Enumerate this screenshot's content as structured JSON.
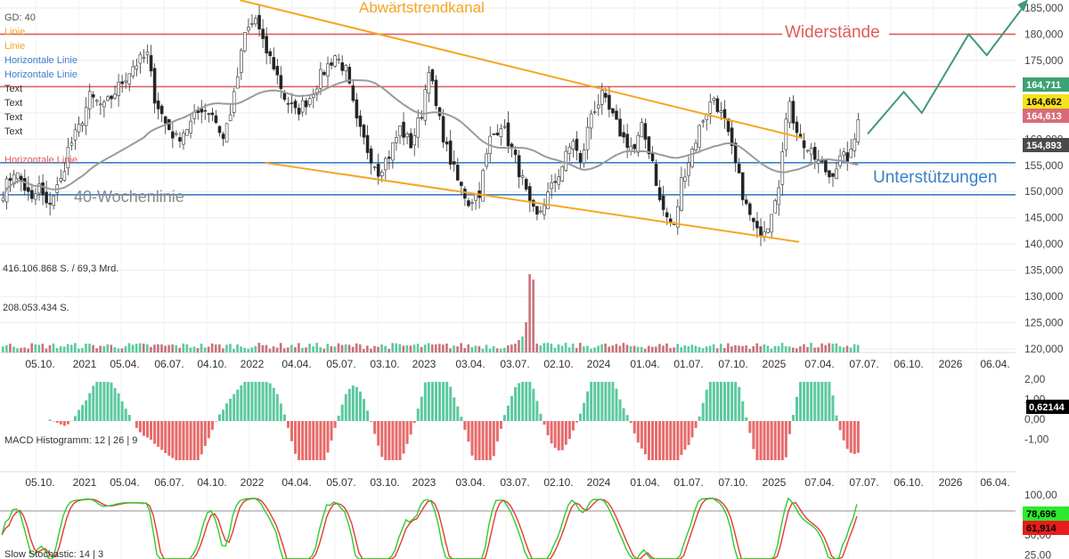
{
  "legend": {
    "gd": "GD: 40",
    "linie1": "Linie",
    "linie2": "Linie",
    "horiz1": "Horizontale Linie",
    "horiz2": "Horizontale Linie",
    "text1": "Text",
    "text2": "Text",
    "text3": "Text",
    "text4": "Text",
    "horiz_red": "Horizontale Linie"
  },
  "annotations": {
    "channel": "Abwärtstrendkanal",
    "resistance": "Widerstände",
    "support": "Unterstützungen",
    "ma": "40-Wochenlinie"
  },
  "volume_labels": {
    "top": "416.106.868 S. / 69,3 Mrd.",
    "mid": "208.053.434 S."
  },
  "price_badges": [
    {
      "label": "164,711",
      "color": "#3ba272",
      "text_color": "#ffffff"
    },
    {
      "label": "164,662",
      "color": "#f5e21b",
      "text_color": "#000000"
    },
    {
      "label": "164,613",
      "color": "#d96b78",
      "text_color": "#ffffff"
    },
    {
      "label": "154,893",
      "color": "#4a4a4a",
      "text_color": "#ffffff"
    }
  ],
  "macd": {
    "label": "MACD Histogramm: 12 | 26 | 9",
    "badge": "0,62144"
  },
  "stoch": {
    "label": "Slow Stochastic: 14 | 3",
    "badge1": "78,696",
    "badge2": "61,914"
  },
  "colors": {
    "up": "#3ba272",
    "down": "#d9534f",
    "channel": "#f5a623",
    "resistance": "#e05a5a",
    "support": "#3a80c9",
    "ma": "#9a9a9a",
    "forecast": "#3f9a7a",
    "macd_pos": "#5cc9a0",
    "macd_neg": "#e86a6a"
  },
  "chart_data": [
    {
      "type": "candlestick",
      "price_axis": {
        "ticks": [
          "185,000",
          "180,000",
          "175,000",
          "170,000",
          "165,000",
          "160,000",
          "155,000",
          "150,000",
          "145,000",
          "140,000",
          "135,000",
          "130,000",
          "125,000",
          "120,000"
        ],
        "ylim": [
          118,
          188
        ]
      },
      "x_ticks": [
        "05.10.",
        "2021",
        "05.04.",
        "06.07.",
        "04.10.",
        "2022",
        "04.04.",
        "05.07.",
        "03.10.",
        "2023",
        "03.04.",
        "03.07.",
        "02.10.",
        "2024",
        "01.04.",
        "01.07.",
        "07.10.",
        "2025",
        "07.04.",
        "07.07.",
        "06.10.",
        "2026",
        "06.04."
      ],
      "close_anchors": [
        [
          0,
          150
        ],
        [
          3,
          154
        ],
        [
          5,
          152
        ],
        [
          8,
          148
        ],
        [
          10,
          151
        ],
        [
          12,
          147
        ],
        [
          16,
          152
        ],
        [
          18,
          158
        ],
        [
          21,
          162
        ],
        [
          24,
          168
        ],
        [
          28,
          166
        ],
        [
          32,
          170
        ],
        [
          36,
          174
        ],
        [
          40,
          176
        ],
        [
          42,
          168
        ],
        [
          45,
          163
        ],
        [
          48,
          160
        ],
        [
          52,
          163
        ],
        [
          55,
          166
        ],
        [
          58,
          165
        ],
        [
          61,
          160
        ],
        [
          64,
          168
        ],
        [
          67,
          180
        ],
        [
          70,
          183
        ],
        [
          72,
          178
        ],
        [
          75,
          174
        ],
        [
          78,
          168
        ],
        [
          81,
          165
        ],
        [
          85,
          168
        ],
        [
          88,
          172
        ],
        [
          92,
          176
        ],
        [
          95,
          173
        ],
        [
          98,
          163
        ],
        [
          101,
          158
        ],
        [
          104,
          154
        ],
        [
          107,
          157
        ],
        [
          110,
          162
        ],
        [
          113,
          159
        ],
        [
          116,
          165
        ],
        [
          118,
          174
        ],
        [
          120,
          166
        ],
        [
          123,
          158
        ],
        [
          126,
          152
        ],
        [
          129,
          148
        ],
        [
          132,
          150
        ],
        [
          135,
          160
        ],
        [
          138,
          163
        ],
        [
          141,
          158
        ],
        [
          144,
          152
        ],
        [
          146,
          147
        ],
        [
          148,
          145
        ],
        [
          150,
          148
        ],
        [
          153,
          152
        ],
        [
          155,
          155
        ],
        [
          158,
          160
        ],
        [
          160,
          155
        ],
        [
          163,
          165
        ],
        [
          166,
          168
        ],
        [
          169,
          164
        ],
        [
          172,
          160
        ],
        [
          175,
          158
        ],
        [
          177,
          162
        ],
        [
          180,
          156
        ],
        [
          182,
          148
        ],
        [
          184,
          145
        ],
        [
          186,
          143
        ],
        [
          188,
          152
        ],
        [
          191,
          158
        ],
        [
          194,
          164
        ],
        [
          197,
          168
        ],
        [
          200,
          163
        ],
        [
          203,
          155
        ],
        [
          206,
          147
        ],
        [
          209,
          142
        ],
        [
          212,
          144
        ],
        [
          215,
          152
        ],
        [
          218,
          168
        ],
        [
          219,
          164
        ],
        [
          221,
          160
        ],
        [
          224,
          157
        ],
        [
          227,
          155
        ],
        [
          229,
          153
        ],
        [
          232,
          156
        ],
        [
          235,
          157
        ],
        [
          236,
          160
        ],
        [
          237,
          164.7
        ]
      ],
      "ma40": {
        "name": "40-Wochenlinie"
      },
      "horizontal_lines": [
        {
          "y": 180,
          "role": "Widerstände"
        },
        {
          "y": 170,
          "role": "Widerstände"
        },
        {
          "y": 155.5,
          "role": "Unterstützungen"
        },
        {
          "y": 149.4,
          "role": "Unterstützungen"
        }
      ],
      "channel_lines": [
        {
          "from": [
            66,
            186.5
          ],
          "to": [
            222,
            160.2
          ]
        },
        {
          "from": [
            73,
            155.5
          ],
          "to": [
            221,
            140.4
          ]
        }
      ],
      "forecast_path": [
        [
          240,
          161
        ],
        [
          250,
          169
        ],
        [
          255,
          165
        ],
        [
          268,
          180
        ],
        [
          273,
          176
        ],
        [
          284,
          186
        ]
      ]
    },
    {
      "type": "bar",
      "name": "Volume",
      "peak_index": 146
    },
    {
      "type": "bar",
      "name": "MACD Histogramm: 12 | 26 | 9",
      "y_ticks": [
        "2,00",
        "1,00",
        "0,00",
        "-1,00"
      ],
      "ylim": [
        -2,
        2.2
      ]
    },
    {
      "type": "line",
      "name": "Slow Stochastic: 14 | 3",
      "y_ticks": [
        "100,00",
        "75,00",
        "50,00",
        "25,00"
      ],
      "ylim": [
        20,
        100
      ]
    }
  ]
}
